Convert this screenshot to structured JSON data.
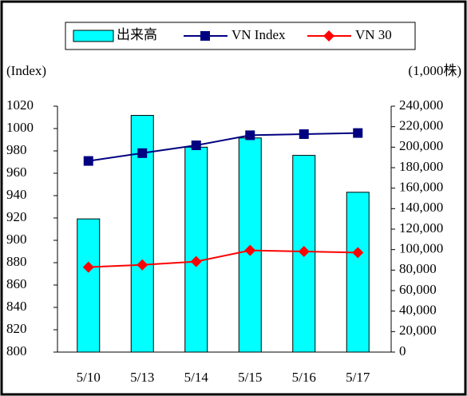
{
  "chart_data": {
    "type": "bar-line",
    "y_label": "(Index)",
    "y2_label": "(1,000株)",
    "categories": [
      "5/10",
      "5/13",
      "5/14",
      "5/15",
      "5/16",
      "5/17"
    ],
    "ylim": [
      800,
      1020
    ],
    "yticks": [
      800,
      820,
      840,
      860,
      880,
      900,
      920,
      940,
      960,
      980,
      1000,
      1020
    ],
    "y2lim": [
      0,
      240000
    ],
    "y2ticks": [
      0,
      {
        "value": 20000,
        "label": "20,000"
      },
      {
        "value": 40000,
        "label": "40,000"
      },
      {
        "value": 60000,
        "label": "60,000"
      },
      {
        "value": 80000,
        "label": "80,000"
      },
      {
        "value": 100000,
        "label": "100,000"
      },
      {
        "value": 120000,
        "label": "120,000"
      },
      {
        "value": 140000,
        "label": "140,000"
      },
      {
        "value": 160000,
        "label": "160,000"
      },
      {
        "value": 180000,
        "label": "180,000"
      },
      {
        "value": 200000,
        "label": "200,000"
      },
      {
        "value": 220000,
        "label": "220,000"
      },
      {
        "value": 240000,
        "label": "240,000"
      }
    ],
    "series": [
      {
        "name": "出来高",
        "type": "bar",
        "axis": "y2",
        "color": "#00ffff",
        "values": [
          130000,
          231000,
          200000,
          209000,
          192000,
          156000
        ]
      },
      {
        "name": "VN Index",
        "type": "line",
        "color": "#000080",
        "marker": "square",
        "values": [
          971,
          978,
          985,
          994,
          995,
          996
        ]
      },
      {
        "name": "VN 30",
        "type": "line",
        "color": "#ff0000",
        "marker": "diamond",
        "values": [
          876,
          878,
          881,
          891,
          890,
          889
        ]
      }
    ]
  }
}
